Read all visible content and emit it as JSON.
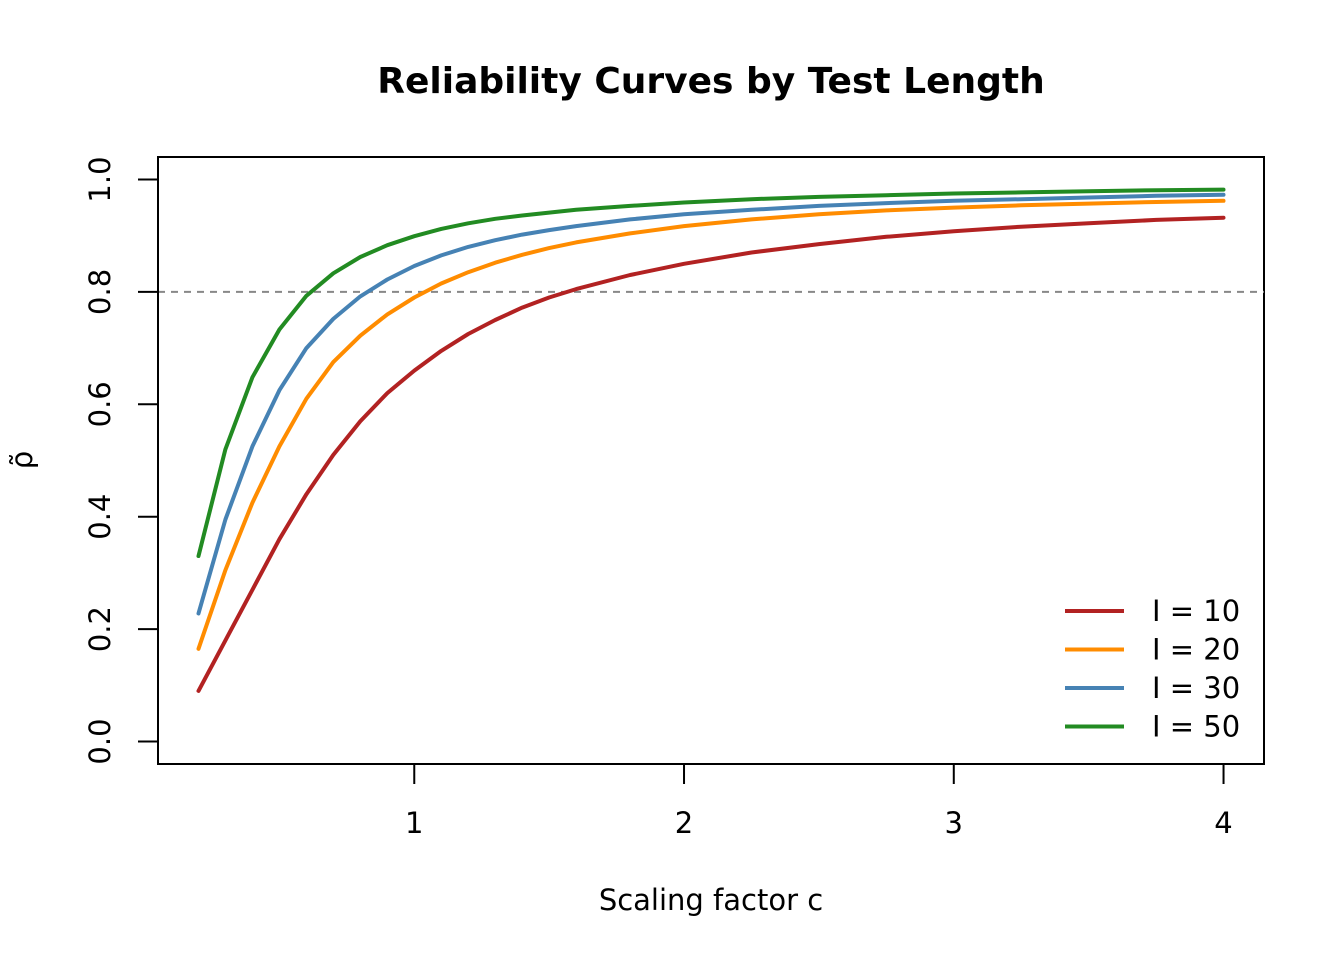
{
  "chart_data": {
    "type": "line",
    "title": "Reliability Curves by Test Length",
    "xlabel": "Scaling factor c",
    "ylabel": "ρ̃",
    "xlim": [
      0.05,
      4.15
    ],
    "ylim": [
      -0.04,
      1.04
    ],
    "x_ticks": [
      1,
      2,
      3,
      4
    ],
    "x_tick_labels": [
      "1",
      "2",
      "3",
      "4"
    ],
    "y_ticks": [
      0.0,
      0.2,
      0.4,
      0.6,
      0.8,
      1.0
    ],
    "y_tick_labels": [
      "0.0",
      "0.2",
      "0.4",
      "0.6",
      "0.8",
      "1.0"
    ],
    "reference_line": {
      "y": 0.8,
      "style": "dashed",
      "color": "#888888"
    },
    "grid": false,
    "legend_position": "bottom-right",
    "series": [
      {
        "name": "I = 10",
        "color": "#b22222",
        "x": [
          0.2,
          0.3,
          0.4,
          0.5,
          0.6,
          0.7,
          0.8,
          0.9,
          1.0,
          1.1,
          1.2,
          1.3,
          1.4,
          1.5,
          1.6,
          1.8,
          2.0,
          2.25,
          2.5,
          2.75,
          3.0,
          3.25,
          3.5,
          3.75,
          4.0
        ],
        "y": [
          0.09,
          0.18,
          0.27,
          0.36,
          0.44,
          0.51,
          0.57,
          0.62,
          0.66,
          0.695,
          0.725,
          0.75,
          0.772,
          0.79,
          0.805,
          0.83,
          0.85,
          0.87,
          0.885,
          0.898,
          0.908,
          0.916,
          0.922,
          0.928,
          0.932
        ]
      },
      {
        "name": "I = 20",
        "color": "#ff8c00",
        "x": [
          0.2,
          0.3,
          0.4,
          0.5,
          0.6,
          0.7,
          0.8,
          0.9,
          1.0,
          1.1,
          1.2,
          1.3,
          1.4,
          1.5,
          1.6,
          1.8,
          2.0,
          2.25,
          2.5,
          2.75,
          3.0,
          3.25,
          3.5,
          3.75,
          4.0
        ],
        "y": [
          0.165,
          0.305,
          0.425,
          0.525,
          0.61,
          0.675,
          0.722,
          0.76,
          0.79,
          0.815,
          0.835,
          0.852,
          0.866,
          0.878,
          0.888,
          0.904,
          0.917,
          0.929,
          0.938,
          0.945,
          0.95,
          0.954,
          0.957,
          0.96,
          0.962
        ]
      },
      {
        "name": "I = 30",
        "color": "#4682b4",
        "x": [
          0.2,
          0.3,
          0.4,
          0.5,
          0.6,
          0.7,
          0.8,
          0.9,
          1.0,
          1.1,
          1.2,
          1.3,
          1.4,
          1.5,
          1.6,
          1.8,
          2.0,
          2.25,
          2.5,
          2.75,
          3.0,
          3.25,
          3.5,
          3.75,
          4.0
        ],
        "y": [
          0.228,
          0.395,
          0.525,
          0.625,
          0.7,
          0.752,
          0.792,
          0.822,
          0.846,
          0.865,
          0.88,
          0.892,
          0.902,
          0.91,
          0.917,
          0.929,
          0.938,
          0.946,
          0.953,
          0.958,
          0.962,
          0.965,
          0.968,
          0.971,
          0.973
        ]
      },
      {
        "name": "I = 50",
        "color": "#228b22",
        "x": [
          0.2,
          0.3,
          0.4,
          0.5,
          0.6,
          0.7,
          0.8,
          0.9,
          1.0,
          1.1,
          1.2,
          1.3,
          1.4,
          1.5,
          1.6,
          1.8,
          2.0,
          2.25,
          2.5,
          2.75,
          3.0,
          3.25,
          3.5,
          3.75,
          4.0
        ],
        "y": [
          0.33,
          0.52,
          0.648,
          0.733,
          0.793,
          0.833,
          0.862,
          0.883,
          0.899,
          0.912,
          0.922,
          0.93,
          0.936,
          0.941,
          0.946,
          0.953,
          0.959,
          0.965,
          0.969,
          0.972,
          0.975,
          0.977,
          0.979,
          0.981,
          0.982
        ]
      }
    ]
  }
}
